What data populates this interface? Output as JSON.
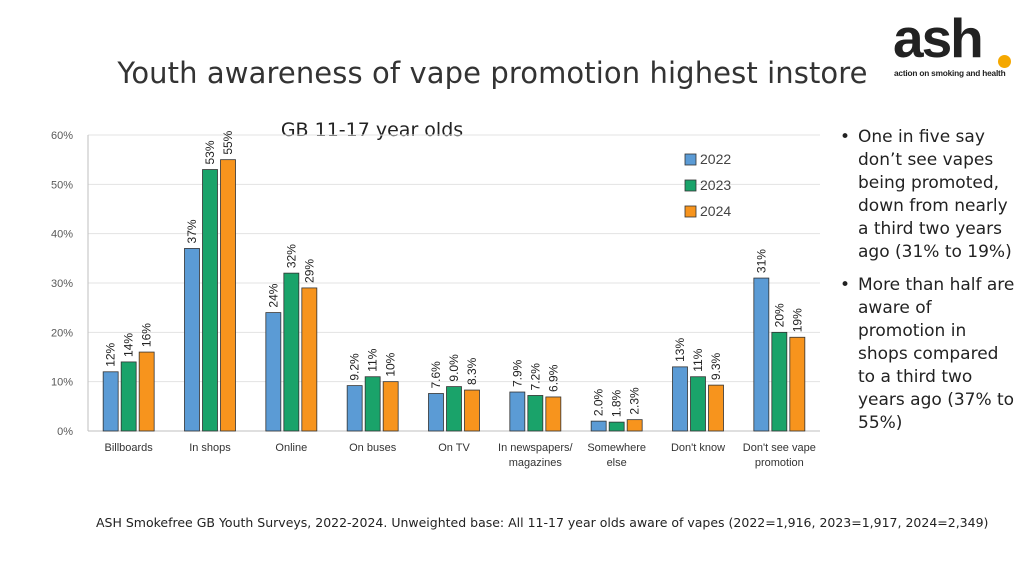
{
  "title": "Youth awareness of vape promotion highest instore",
  "logo": {
    "word": "ash",
    "tagline": "action on smoking and health",
    "dot_color": "#f5a800"
  },
  "bullets": [
    "One in five say don’t see vapes being promoted, down from nearly a third two years ago (31% to 19%)",
    "More than half are aware of promotion in shops compared to a third two years ago (37% to 55%)"
  ],
  "bullet_symbol": "•",
  "footnote": "ASH Smokefree GB  Youth Surveys, 2022-2024. Unweighted base: All 11-17 year olds aware of vapes (2022=1,916, 2023=1,917, 2024=2,349)",
  "chart_data": {
    "type": "bar",
    "title": "GB 11-17 year olds",
    "categories": [
      [
        "Billboards"
      ],
      [
        "In shops"
      ],
      [
        "Online"
      ],
      [
        "On buses"
      ],
      [
        "On TV"
      ],
      [
        "In newspapers/",
        "magazines"
      ],
      [
        "Somewhere",
        "else"
      ],
      [
        "Don't know"
      ],
      [
        "Don't see vape",
        "promotion"
      ]
    ],
    "series": [
      {
        "name": "2022",
        "color": "#5b9bd5",
        "values": [
          12,
          37,
          24,
          9.2,
          7.6,
          7.9,
          2.0,
          13,
          31
        ],
        "labels": [
          "12%",
          "37%",
          "24%",
          "9.2%",
          "7.6%",
          "7.9%",
          "2.0%",
          "13%",
          "31%"
        ]
      },
      {
        "name": "2023",
        "color": "#1aa36a",
        "values": [
          14,
          53,
          32,
          11,
          9.0,
          7.2,
          1.8,
          11,
          20
        ],
        "labels": [
          "14%",
          "53%",
          "32%",
          "11%",
          "9.0%",
          "7.2%",
          "1.8%",
          "11%",
          "20%"
        ]
      },
      {
        "name": "2024",
        "color": "#f7941d",
        "values": [
          16,
          55,
          29,
          10,
          8.3,
          6.9,
          2.3,
          9.3,
          19
        ],
        "labels": [
          "16%",
          "55%",
          "29%",
          "10%",
          "8.3%",
          "6.9%",
          "2.3%",
          "9.3%",
          "19%"
        ]
      }
    ],
    "yticks": [
      0,
      10,
      20,
      30,
      40,
      50,
      60
    ],
    "ytick_labels": [
      "0%",
      "10%",
      "20%",
      "30%",
      "40%",
      "50%",
      "60%"
    ],
    "ylim": [
      0,
      60
    ],
    "grid": true,
    "legend_position": "top-right",
    "xlabel": "",
    "ylabel": ""
  }
}
